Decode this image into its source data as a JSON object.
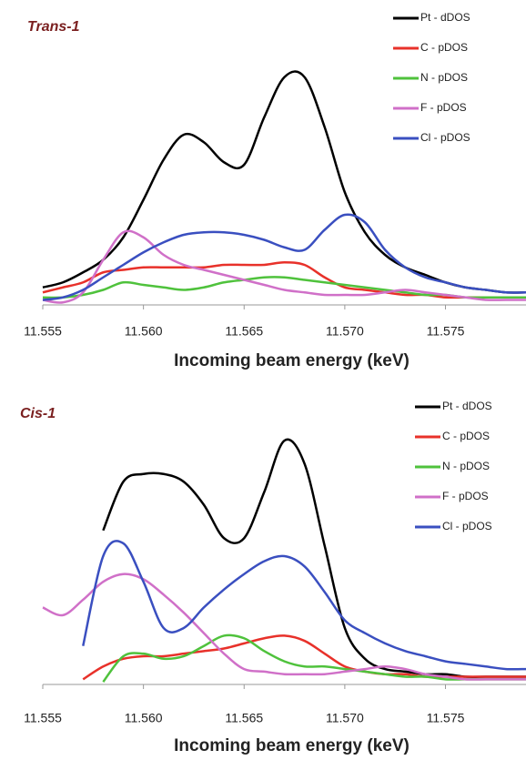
{
  "chart_data": [
    {
      "type": "line",
      "title": "Trans-1",
      "x_label": "Incoming beam energy (keV)",
      "x": [
        11.555,
        11.556,
        11.557,
        11.558,
        11.559,
        11.56,
        11.561,
        11.562,
        11.563,
        11.564,
        11.565,
        11.566,
        11.567,
        11.568,
        11.569,
        11.57,
        11.571,
        11.572,
        11.573,
        11.574,
        11.575,
        11.576,
        11.577,
        11.578,
        11.579
      ],
      "xlim": [
        11.555,
        11.579
      ],
      "ylim": [
        0,
        1
      ],
      "xticks": [
        11.555,
        {
          "value": 11.56,
          "label": "11.560"
        },
        11.565,
        {
          "value": 11.57,
          "label": "11.570"
        },
        11.575
      ],
      "legend": "top-right",
      "series": [
        {
          "name": "Pt - dDOS",
          "color": "#000000",
          "values": [
            0.07,
            0.09,
            0.13,
            0.18,
            0.27,
            0.42,
            0.58,
            0.68,
            0.65,
            0.57,
            0.56,
            0.75,
            0.91,
            0.91,
            0.71,
            0.45,
            0.29,
            0.2,
            0.15,
            0.12,
            0.09,
            0.07,
            0.06,
            0.05,
            0.05
          ]
        },
        {
          "name": "C - pDOS",
          "color": "#e8312a",
          "values": [
            0.05,
            0.07,
            0.09,
            0.13,
            0.14,
            0.15,
            0.15,
            0.15,
            0.15,
            0.16,
            0.16,
            0.16,
            0.17,
            0.16,
            0.11,
            0.07,
            0.06,
            0.05,
            0.04,
            0.04,
            0.03,
            0.03,
            0.03,
            0.03,
            0.03
          ]
        },
        {
          "name": "N - pDOS",
          "color": "#4fc23c",
          "values": [
            0.03,
            0.03,
            0.04,
            0.06,
            0.09,
            0.08,
            0.07,
            0.06,
            0.07,
            0.09,
            0.1,
            0.11,
            0.11,
            0.1,
            0.09,
            0.08,
            0.07,
            0.06,
            0.05,
            0.04,
            0.04,
            0.03,
            0.03,
            0.03,
            0.03
          ]
        },
        {
          "name": "F - pDOS",
          "color": "#d070c8",
          "values": [
            0.02,
            0.01,
            0.05,
            0.18,
            0.29,
            0.27,
            0.2,
            0.16,
            0.14,
            0.12,
            0.1,
            0.08,
            0.06,
            0.05,
            0.04,
            0.04,
            0.04,
            0.05,
            0.06,
            0.05,
            0.04,
            0.03,
            0.02,
            0.02,
            0.02
          ]
        },
        {
          "name": "Cl - pDOS",
          "color": "#3a4fc0",
          "values": [
            0.02,
            0.03,
            0.06,
            0.11,
            0.16,
            0.21,
            0.25,
            0.28,
            0.29,
            0.29,
            0.28,
            0.26,
            0.23,
            0.22,
            0.3,
            0.36,
            0.33,
            0.22,
            0.15,
            0.11,
            0.09,
            0.07,
            0.06,
            0.05,
            0.05
          ]
        }
      ]
    },
    {
      "type": "line",
      "title": "Cis-1",
      "x_label": "Incoming beam energy (keV)",
      "x": [
        11.555,
        11.556,
        11.557,
        11.558,
        11.559,
        11.56,
        11.561,
        11.562,
        11.563,
        11.564,
        11.565,
        11.566,
        11.567,
        11.568,
        11.569,
        11.57,
        11.571,
        11.572,
        11.573,
        11.574,
        11.575,
        11.576,
        11.577,
        11.578,
        11.579
      ],
      "xlim": [
        11.555,
        11.579
      ],
      "ylim": [
        0,
        1
      ],
      "xticks": [
        11.555,
        {
          "value": 11.56,
          "label": "11.560"
        },
        11.565,
        {
          "value": 11.57,
          "label": "11.570"
        },
        11.575
      ],
      "legend": "top-right",
      "series": [
        {
          "name": "Pt - dDOS",
          "color": "#000000",
          "values": [
            null,
            null,
            null,
            0.6,
            0.79,
            0.82,
            0.82,
            0.79,
            0.7,
            0.57,
            0.57,
            0.75,
            0.95,
            0.86,
            0.54,
            0.22,
            0.1,
            0.06,
            0.05,
            0.04,
            0.04,
            0.03,
            0.03,
            0.03,
            0.03
          ]
        },
        {
          "name": "C - pDOS",
          "color": "#e8312a",
          "values": [
            null,
            null,
            0.02,
            0.07,
            0.1,
            0.11,
            0.11,
            0.12,
            0.13,
            0.14,
            0.16,
            0.18,
            0.19,
            0.17,
            0.12,
            0.07,
            0.05,
            0.04,
            0.04,
            0.03,
            0.03,
            0.03,
            0.03,
            0.03,
            0.03
          ]
        },
        {
          "name": "N - pDOS",
          "color": "#4fc23c",
          "values": [
            null,
            null,
            null,
            0.01,
            0.11,
            0.12,
            0.1,
            0.11,
            0.15,
            0.19,
            0.18,
            0.13,
            0.09,
            0.07,
            0.07,
            0.06,
            0.05,
            0.04,
            0.03,
            0.03,
            0.02,
            0.02,
            0.02,
            0.02,
            0.02
          ]
        },
        {
          "name": "F - pDOS",
          "color": "#d070c8",
          "values": [
            0.3,
            0.27,
            0.33,
            0.4,
            0.43,
            0.41,
            0.35,
            0.28,
            0.2,
            0.12,
            0.06,
            0.05,
            0.04,
            0.04,
            0.04,
            0.05,
            0.06,
            0.07,
            0.06,
            0.04,
            0.03,
            0.02,
            0.02,
            0.02,
            0.02
          ]
        },
        {
          "name": "Cl - pDOS",
          "color": "#3a4fc0",
          "values": [
            null,
            null,
            0.15,
            0.5,
            0.55,
            0.4,
            0.22,
            0.22,
            0.3,
            0.37,
            0.43,
            0.48,
            0.5,
            0.46,
            0.36,
            0.25,
            0.2,
            0.16,
            0.13,
            0.11,
            0.09,
            0.08,
            0.07,
            0.06,
            0.06
          ]
        }
      ]
    }
  ]
}
